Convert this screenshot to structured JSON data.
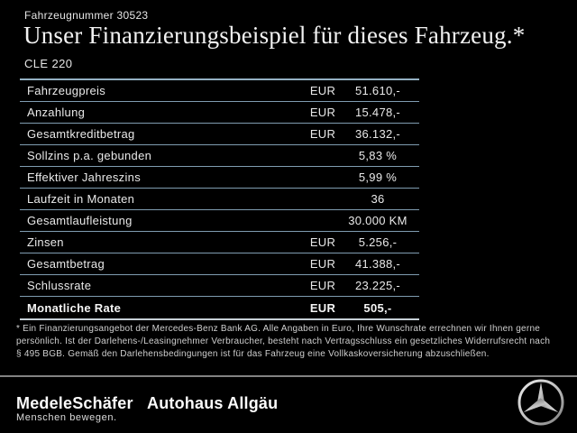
{
  "header": {
    "vehicle_number": "Fahrzeugnummer 30523",
    "title": "Unser Finanzierungsbeispiel für dieses Fahrzeug.*",
    "model": "CLE 220"
  },
  "table": {
    "rows": [
      {
        "key": "fahrzeugpreis",
        "label": "Fahrzeugpreis",
        "currency": "EUR",
        "value": "51.610,-",
        "bold": false
      },
      {
        "key": "anzahlung",
        "label": "Anzahlung",
        "currency": "EUR",
        "value": "15.478,-",
        "bold": false
      },
      {
        "key": "gesamtkreditbetrag",
        "label": "Gesamtkreditbetrag",
        "currency": "EUR",
        "value": "36.132,-",
        "bold": false
      },
      {
        "key": "sollzins-pa-gebunden",
        "label": "Sollzins p.a. gebunden",
        "currency": "",
        "value": "5,83 %",
        "bold": false
      },
      {
        "key": "effektiver-jahreszins",
        "label": "Effektiver Jahreszins",
        "currency": "",
        "value": "5,99 %",
        "bold": false
      },
      {
        "key": "laufzeit-in-monaten",
        "label": "Laufzeit in Monaten",
        "currency": "",
        "value": "36",
        "bold": false
      },
      {
        "key": "gesamtlaufleistung",
        "label": "Gesamtlaufleistung",
        "currency": "",
        "value": "30.000 KM",
        "bold": false
      },
      {
        "key": "zinsen",
        "label": "Zinsen",
        "currency": "EUR",
        "value": "5.256,-",
        "bold": false
      },
      {
        "key": "gesamtbetrag",
        "label": "Gesamtbetrag",
        "currency": "EUR",
        "value": "41.388,-",
        "bold": false
      },
      {
        "key": "schlussrate",
        "label": "Schlussrate",
        "currency": "EUR",
        "value": "23.225,-",
        "bold": false
      },
      {
        "key": "monatliche-rate",
        "label": "Monatliche Rate",
        "currency": "EUR",
        "value": "505,-",
        "bold": true
      }
    ]
  },
  "footnote": {
    "lines": [
      "* Ein Finanzierungsangebot der Mercedes-Benz Bank AG. Alle Angaben in Euro, Ihre Wunschrate errechnen wir Ihnen gerne",
      "persönlich. Ist der Darlehens-/Leasingnehmer Verbraucher, besteht nach Vertragsschluss ein gesetzliches Widerrufsrecht nach",
      "§ 495 BGB. Gemäß den Darlehensbedingungen ist für das Fahrzeug eine Vollkaskoversicherung abzuschließen."
    ]
  },
  "footer": {
    "dealer_name": "MedeleSchäfer",
    "dealer_tagline": "Menschen bewegen.",
    "dealer_branch": "Autohaus Allgäu",
    "brand_logo": "mercedes-benz-star"
  },
  "colors": {
    "background": "#000000",
    "text": "#ededed",
    "table_line": "#7f9cb0",
    "table_border_top": "#93b0c2",
    "table_border_bottom": "#c5cfd6",
    "footer_divider": "#828282",
    "logo_silver": "#c7c7c7"
  }
}
